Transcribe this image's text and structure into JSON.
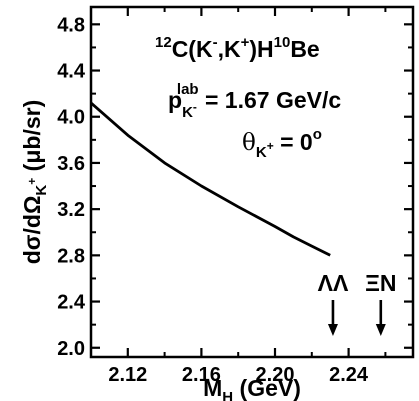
{
  "chart_data": {
    "type": "line",
    "xlabel_main": "M",
    "xlabel_sub": "H",
    "xlabel_unit": " (GeV)",
    "ylabel_main": "dσ/dΩ",
    "ylabel_sub": "K",
    "ylabel_subsup": "+",
    "ylabel_unit": " (μb/sr)",
    "xlim": [
      2.1,
      2.275
    ],
    "ylim": [
      1.92,
      4.95
    ],
    "x_ticks": [
      "2.12",
      "2.16",
      "2.20",
      "2.24"
    ],
    "y_ticks": [
      "2.0",
      "2.4",
      "2.8",
      "3.2",
      "3.6",
      "4.0",
      "4.4",
      "4.8"
    ],
    "series": [
      {
        "x": [
          2.1,
          2.12,
          2.14,
          2.16,
          2.18,
          2.2,
          2.21,
          2.22,
          2.23
        ],
        "y": [
          4.12,
          3.84,
          3.6,
          3.4,
          3.22,
          3.05,
          2.96,
          2.88,
          2.8
        ]
      }
    ],
    "annotations": {
      "reaction_pre": "12",
      "reaction_a": "C(K",
      "reaction_a_sup": "-",
      "reaction_b": ",K",
      "reaction_b_sup": "+",
      "reaction_c": ")H",
      "reaction_d_sup": "10",
      "reaction_d": "Be",
      "momentum_p": "p",
      "momentum_sub": "K",
      "momentum_subsup": "-",
      "momentum_sup": "lab",
      "momentum_value": " = 1.67 GeV/c",
      "angle_theta": "θ",
      "angle_sub": "K",
      "angle_subsup": "+",
      "angle_value": " = 0",
      "angle_deg": "o"
    },
    "thresholds": [
      {
        "label": "ΛΛ",
        "x": 2.2315
      },
      {
        "label": "ΞN",
        "x": 2.2575
      }
    ]
  }
}
